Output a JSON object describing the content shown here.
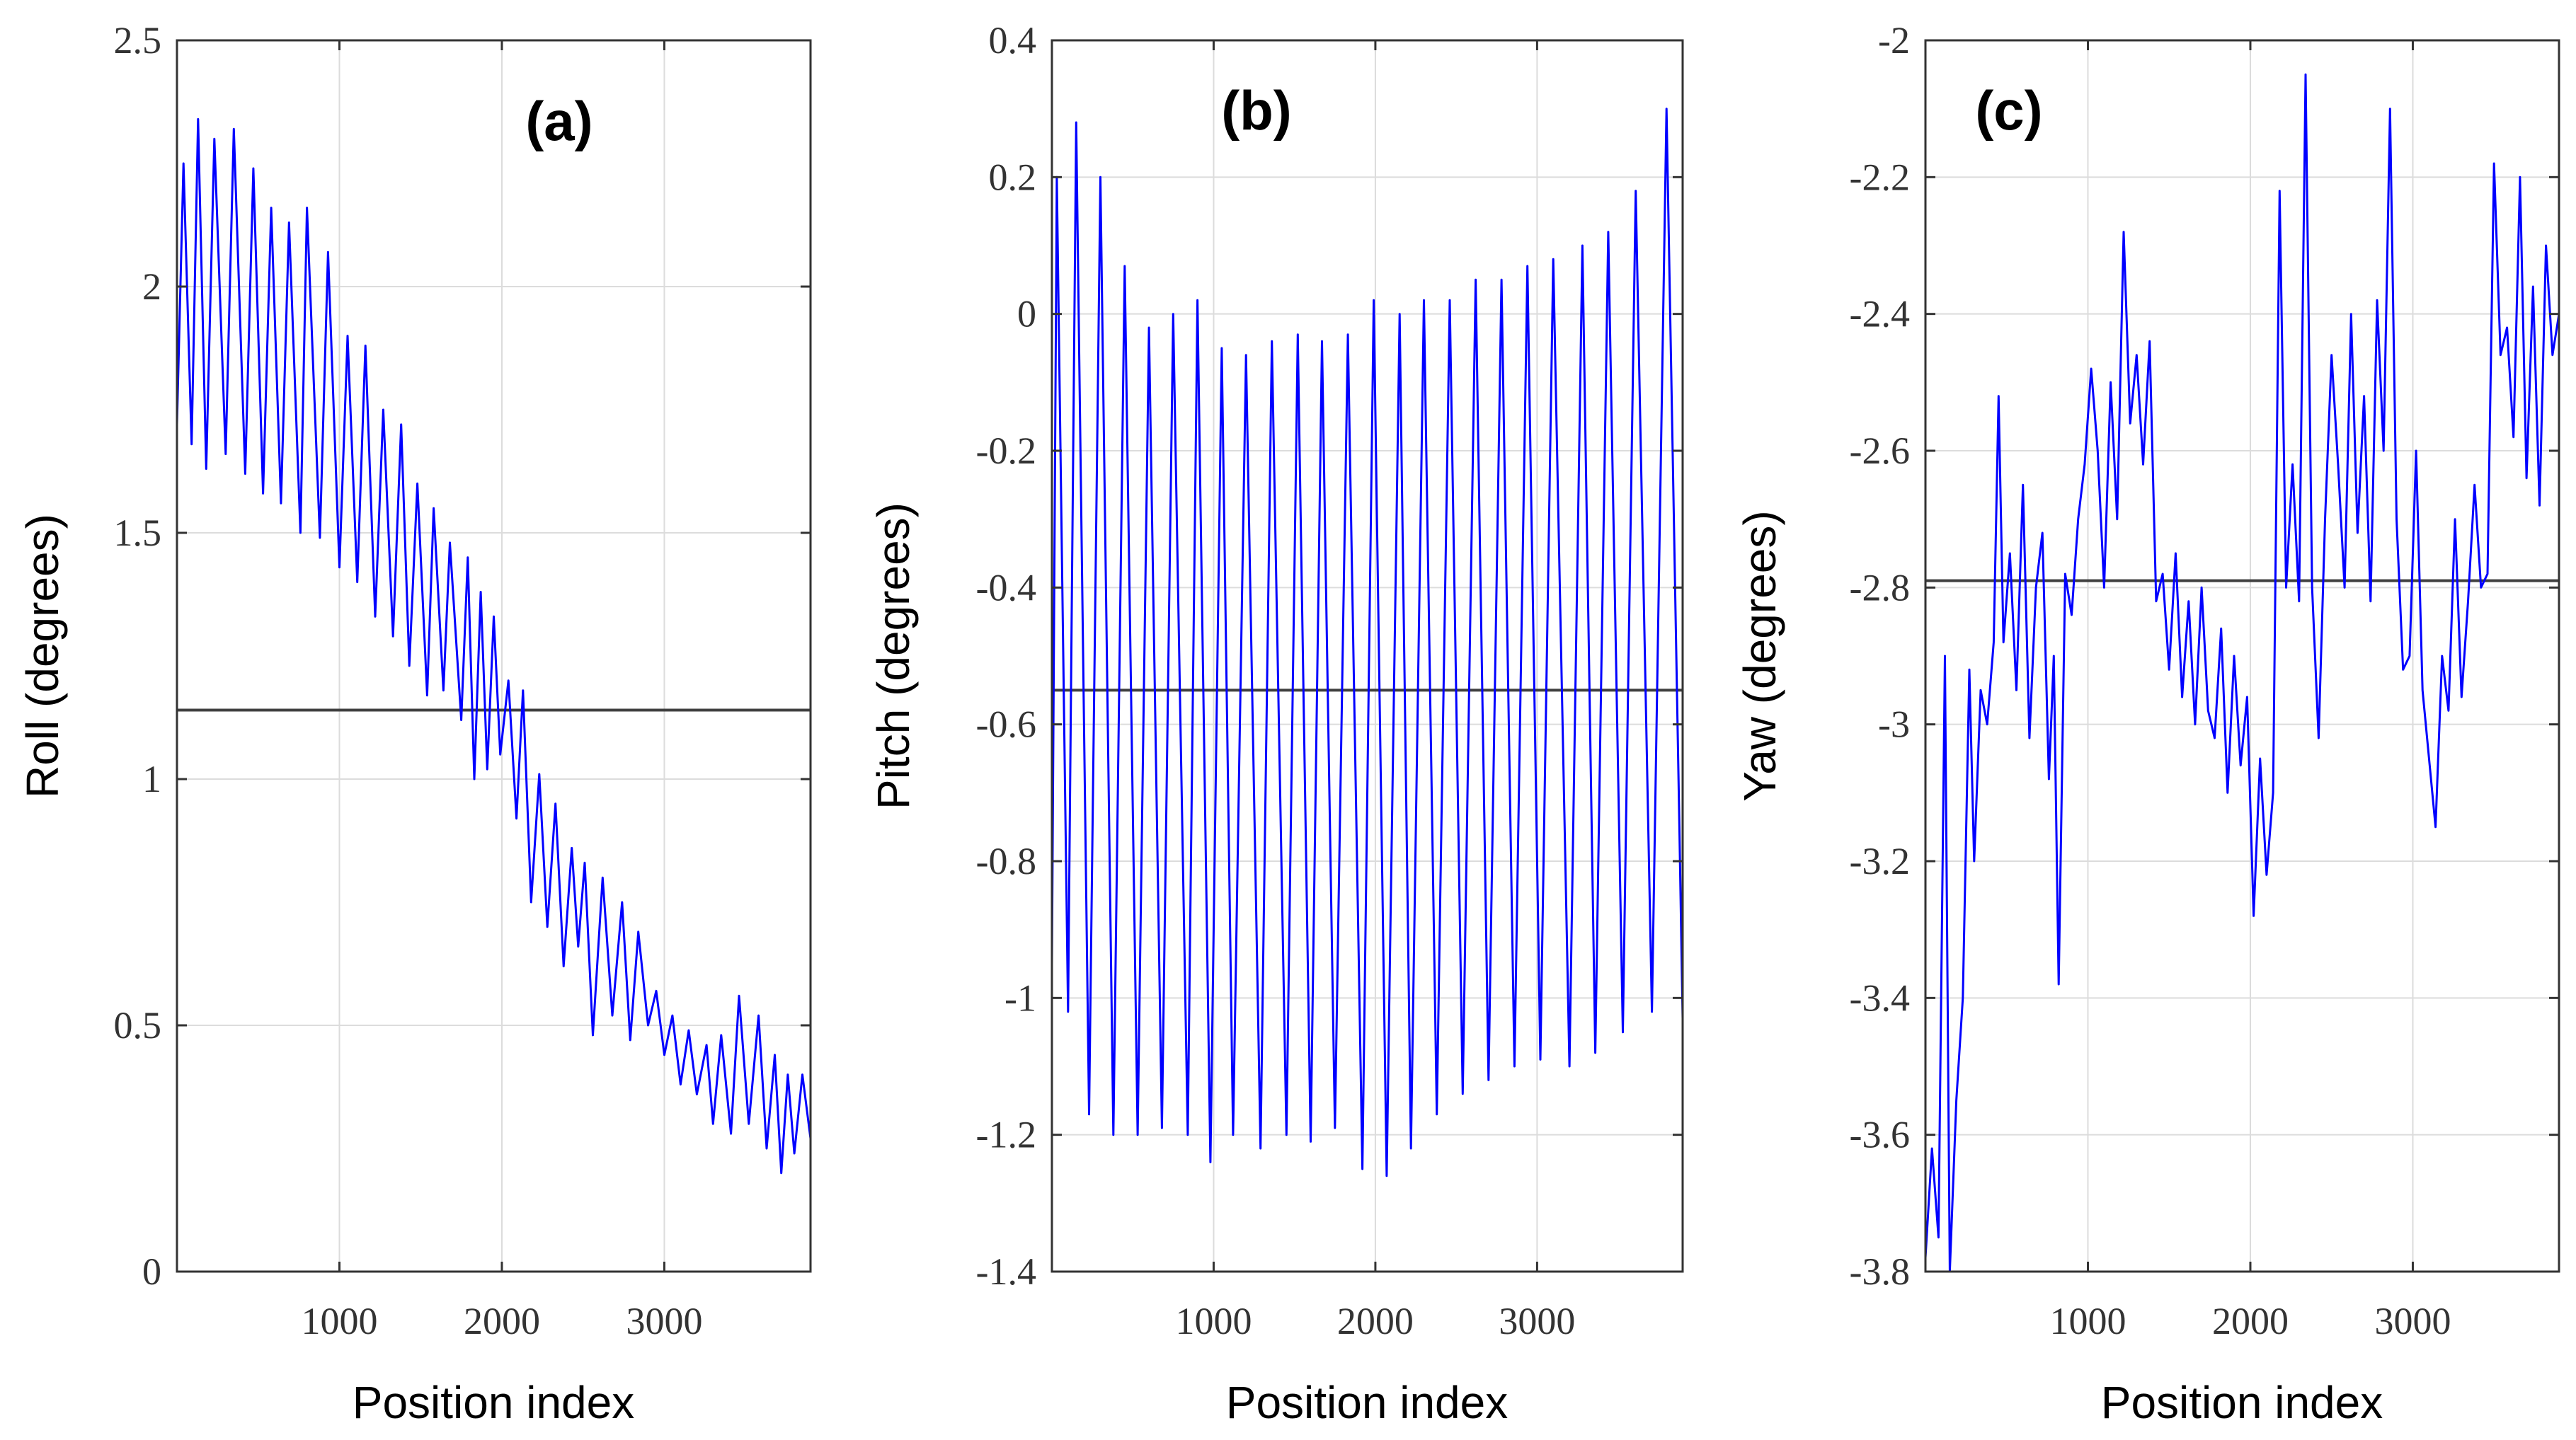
{
  "chart_data": [
    {
      "type": "line",
      "panel_label": "(a)",
      "xlabel": "Position index",
      "ylabel": "Roll (degrees)",
      "xlim": [
        0,
        3900
      ],
      "ylim": [
        0,
        2.5
      ],
      "xticks": [
        1000,
        2000,
        3000
      ],
      "yticks": [
        0,
        0.5,
        1,
        1.5,
        2,
        2.5
      ],
      "ytick_labels": [
        "0",
        "0.5",
        "1",
        "1.5",
        "2",
        "2.5"
      ],
      "grid": true,
      "series_color": "#0000ff",
      "mean_color": "#404040",
      "mean_value": 1.14,
      "series": [
        {
          "name": "Roll",
          "x": [
            0,
            40,
            90,
            130,
            180,
            230,
            300,
            350,
            420,
            470,
            530,
            580,
            640,
            690,
            760,
            800,
            880,
            930,
            1000,
            1050,
            1110,
            1160,
            1220,
            1270,
            1330,
            1380,
            1430,
            1480,
            1540,
            1580,
            1640,
            1680,
            1750,
            1790,
            1830,
            1870,
            1910,
            1950,
            1990,
            2040,
            2090,
            2130,
            2180,
            2230,
            2280,
            2330,
            2380,
            2430,
            2470,
            2510,
            2560,
            2620,
            2680,
            2740,
            2790,
            2840,
            2900,
            2950,
            3000,
            3050,
            3100,
            3150,
            3200,
            3260,
            3300,
            3350,
            3410,
            3460,
            3520,
            3580,
            3630,
            3680,
            3720,
            3760,
            3800,
            3850,
            3900
          ],
          "y": [
            1.72,
            2.25,
            1.68,
            2.34,
            1.63,
            2.3,
            1.66,
            2.32,
            1.62,
            2.24,
            1.58,
            2.16,
            1.56,
            2.13,
            1.5,
            2.16,
            1.49,
            2.07,
            1.43,
            1.9,
            1.4,
            1.88,
            1.33,
            1.75,
            1.29,
            1.72,
            1.23,
            1.6,
            1.17,
            1.55,
            1.18,
            1.48,
            1.12,
            1.45,
            1.0,
            1.38,
            1.02,
            1.33,
            1.05,
            1.2,
            0.92,
            1.18,
            0.75,
            1.01,
            0.7,
            0.95,
            0.62,
            0.86,
            0.66,
            0.83,
            0.48,
            0.8,
            0.52,
            0.75,
            0.47,
            0.69,
            0.5,
            0.57,
            0.44,
            0.52,
            0.38,
            0.49,
            0.36,
            0.46,
            0.3,
            0.48,
            0.28,
            0.56,
            0.3,
            0.52,
            0.25,
            0.44,
            0.2,
            0.4,
            0.24,
            0.4,
            0.27
          ]
        }
      ]
    },
    {
      "type": "line",
      "panel_label": "(b)",
      "xlabel": "Position index",
      "ylabel": "Pitch (degrees)",
      "xlim": [
        0,
        3900
      ],
      "ylim": [
        -1.4,
        0.4
      ],
      "xticks": [
        1000,
        2000,
        3000
      ],
      "yticks": [
        -1.4,
        -1.2,
        -1,
        -0.8,
        -0.6,
        -0.4,
        -0.2,
        0,
        0.2,
        0.4
      ],
      "ytick_labels": [
        "-1.4",
        "-1.2",
        "-1",
        "-0.8",
        "-0.6",
        "-0.4",
        "-0.2",
        "0",
        "0.2",
        "0.4"
      ],
      "grid": true,
      "series_color": "#0000ff",
      "mean_color": "#404040",
      "mean_value": -0.55,
      "series": [
        {
          "name": "Pitch",
          "x": [
            0,
            30,
            100,
            150,
            230,
            300,
            380,
            450,
            530,
            600,
            680,
            750,
            840,
            900,
            980,
            1050,
            1120,
            1200,
            1290,
            1360,
            1450,
            1520,
            1600,
            1670,
            1750,
            1830,
            1920,
            1990,
            2070,
            2150,
            2220,
            2300,
            2380,
            2460,
            2540,
            2620,
            2700,
            2780,
            2860,
            2940,
            3020,
            3100,
            3200,
            3280,
            3360,
            3440,
            3530,
            3610,
            3710,
            3800,
            3880,
            3900
          ],
          "y": [
            -0.95,
            0.2,
            -1.02,
            0.28,
            -1.17,
            0.2,
            -1.2,
            0.07,
            -1.2,
            -0.02,
            -1.19,
            0.0,
            -1.2,
            0.02,
            -1.24,
            -0.05,
            -1.2,
            -0.06,
            -1.22,
            -0.04,
            -1.2,
            -0.03,
            -1.21,
            -0.04,
            -1.19,
            -0.03,
            -1.25,
            0.02,
            -1.26,
            0.0,
            -1.22,
            0.02,
            -1.17,
            0.02,
            -1.14,
            0.05,
            -1.12,
            0.05,
            -1.1,
            0.07,
            -1.09,
            0.08,
            -1.1,
            0.1,
            -1.08,
            0.12,
            -1.05,
            0.18,
            -1.02,
            0.3,
            -0.75,
            -1.03
          ]
        }
      ]
    },
    {
      "type": "line",
      "panel_label": "(c)",
      "xlabel": "Position index",
      "ylabel": "Yaw (degrees)",
      "xlim": [
        0,
        3900
      ],
      "ylim": [
        -3.8,
        -2.0
      ],
      "xticks": [
        1000,
        2000,
        3000
      ],
      "yticks": [
        -3.8,
        -3.6,
        -3.4,
        -3.2,
        -3,
        -2.8,
        -2.6,
        -2.4,
        -2.2,
        -2
      ],
      "ytick_labels": [
        "-3.8",
        "-3.6",
        "-3.4",
        "-3.2",
        "-3",
        "-2.8",
        "-2.6",
        "-2.4",
        "-2.2",
        "-2"
      ],
      "grid": true,
      "series_color": "#0000ff",
      "mean_color": "#404040",
      "mean_value": -2.79,
      "series": [
        {
          "name": "Yaw",
          "x": [
            0,
            40,
            80,
            120,
            150,
            190,
            230,
            270,
            300,
            340,
            380,
            420,
            450,
            480,
            520,
            560,
            600,
            640,
            680,
            720,
            760,
            790,
            820,
            860,
            900,
            940,
            980,
            1020,
            1060,
            1100,
            1140,
            1180,
            1220,
            1260,
            1300,
            1340,
            1380,
            1420,
            1460,
            1500,
            1540,
            1580,
            1620,
            1660,
            1700,
            1740,
            1780,
            1820,
            1860,
            1900,
            1940,
            1980,
            2020,
            2060,
            2100,
            2140,
            2180,
            2220,
            2260,
            2300,
            2340,
            2380,
            2420,
            2460,
            2500,
            2540,
            2580,
            2620,
            2660,
            2700,
            2740,
            2780,
            2820,
            2860,
            2900,
            2940,
            2980,
            3020,
            3060,
            3100,
            3140,
            3180,
            3220,
            3260,
            3300,
            3340,
            3380,
            3420,
            3460,
            3500,
            3540,
            3580,
            3620,
            3660,
            3700,
            3740,
            3780,
            3820,
            3860,
            3900
          ],
          "y": [
            -3.78,
            -3.62,
            -3.75,
            -2.9,
            -3.8,
            -3.55,
            -3.4,
            -2.92,
            -3.2,
            -2.95,
            -3.0,
            -2.88,
            -2.52,
            -2.88,
            -2.75,
            -2.95,
            -2.65,
            -3.02,
            -2.8,
            -2.72,
            -3.08,
            -2.9,
            -3.38,
            -2.78,
            -2.84,
            -2.7,
            -2.62,
            -2.48,
            -2.6,
            -2.8,
            -2.5,
            -2.7,
            -2.28,
            -2.56,
            -2.46,
            -2.62,
            -2.44,
            -2.82,
            -2.78,
            -2.92,
            -2.75,
            -2.96,
            -2.82,
            -3.0,
            -2.8,
            -2.98,
            -3.02,
            -2.86,
            -3.1,
            -2.9,
            -3.06,
            -2.96,
            -3.28,
            -3.05,
            -3.22,
            -3.1,
            -2.22,
            -2.8,
            -2.62,
            -2.82,
            -2.05,
            -2.8,
            -3.02,
            -2.7,
            -2.46,
            -2.62,
            -2.8,
            -2.4,
            -2.72,
            -2.52,
            -2.82,
            -2.38,
            -2.6,
            -2.1,
            -2.7,
            -2.92,
            -2.9,
            -2.6,
            -2.95,
            -3.05,
            -3.15,
            -2.9,
            -2.98,
            -2.7,
            -2.96,
            -2.82,
            -2.65,
            -2.8,
            -2.78,
            -2.18,
            -2.46,
            -2.42,
            -2.58,
            -2.2,
            -2.64,
            -2.36,
            -2.68,
            -2.3,
            -2.46,
            -2.4
          ]
        }
      ]
    }
  ]
}
